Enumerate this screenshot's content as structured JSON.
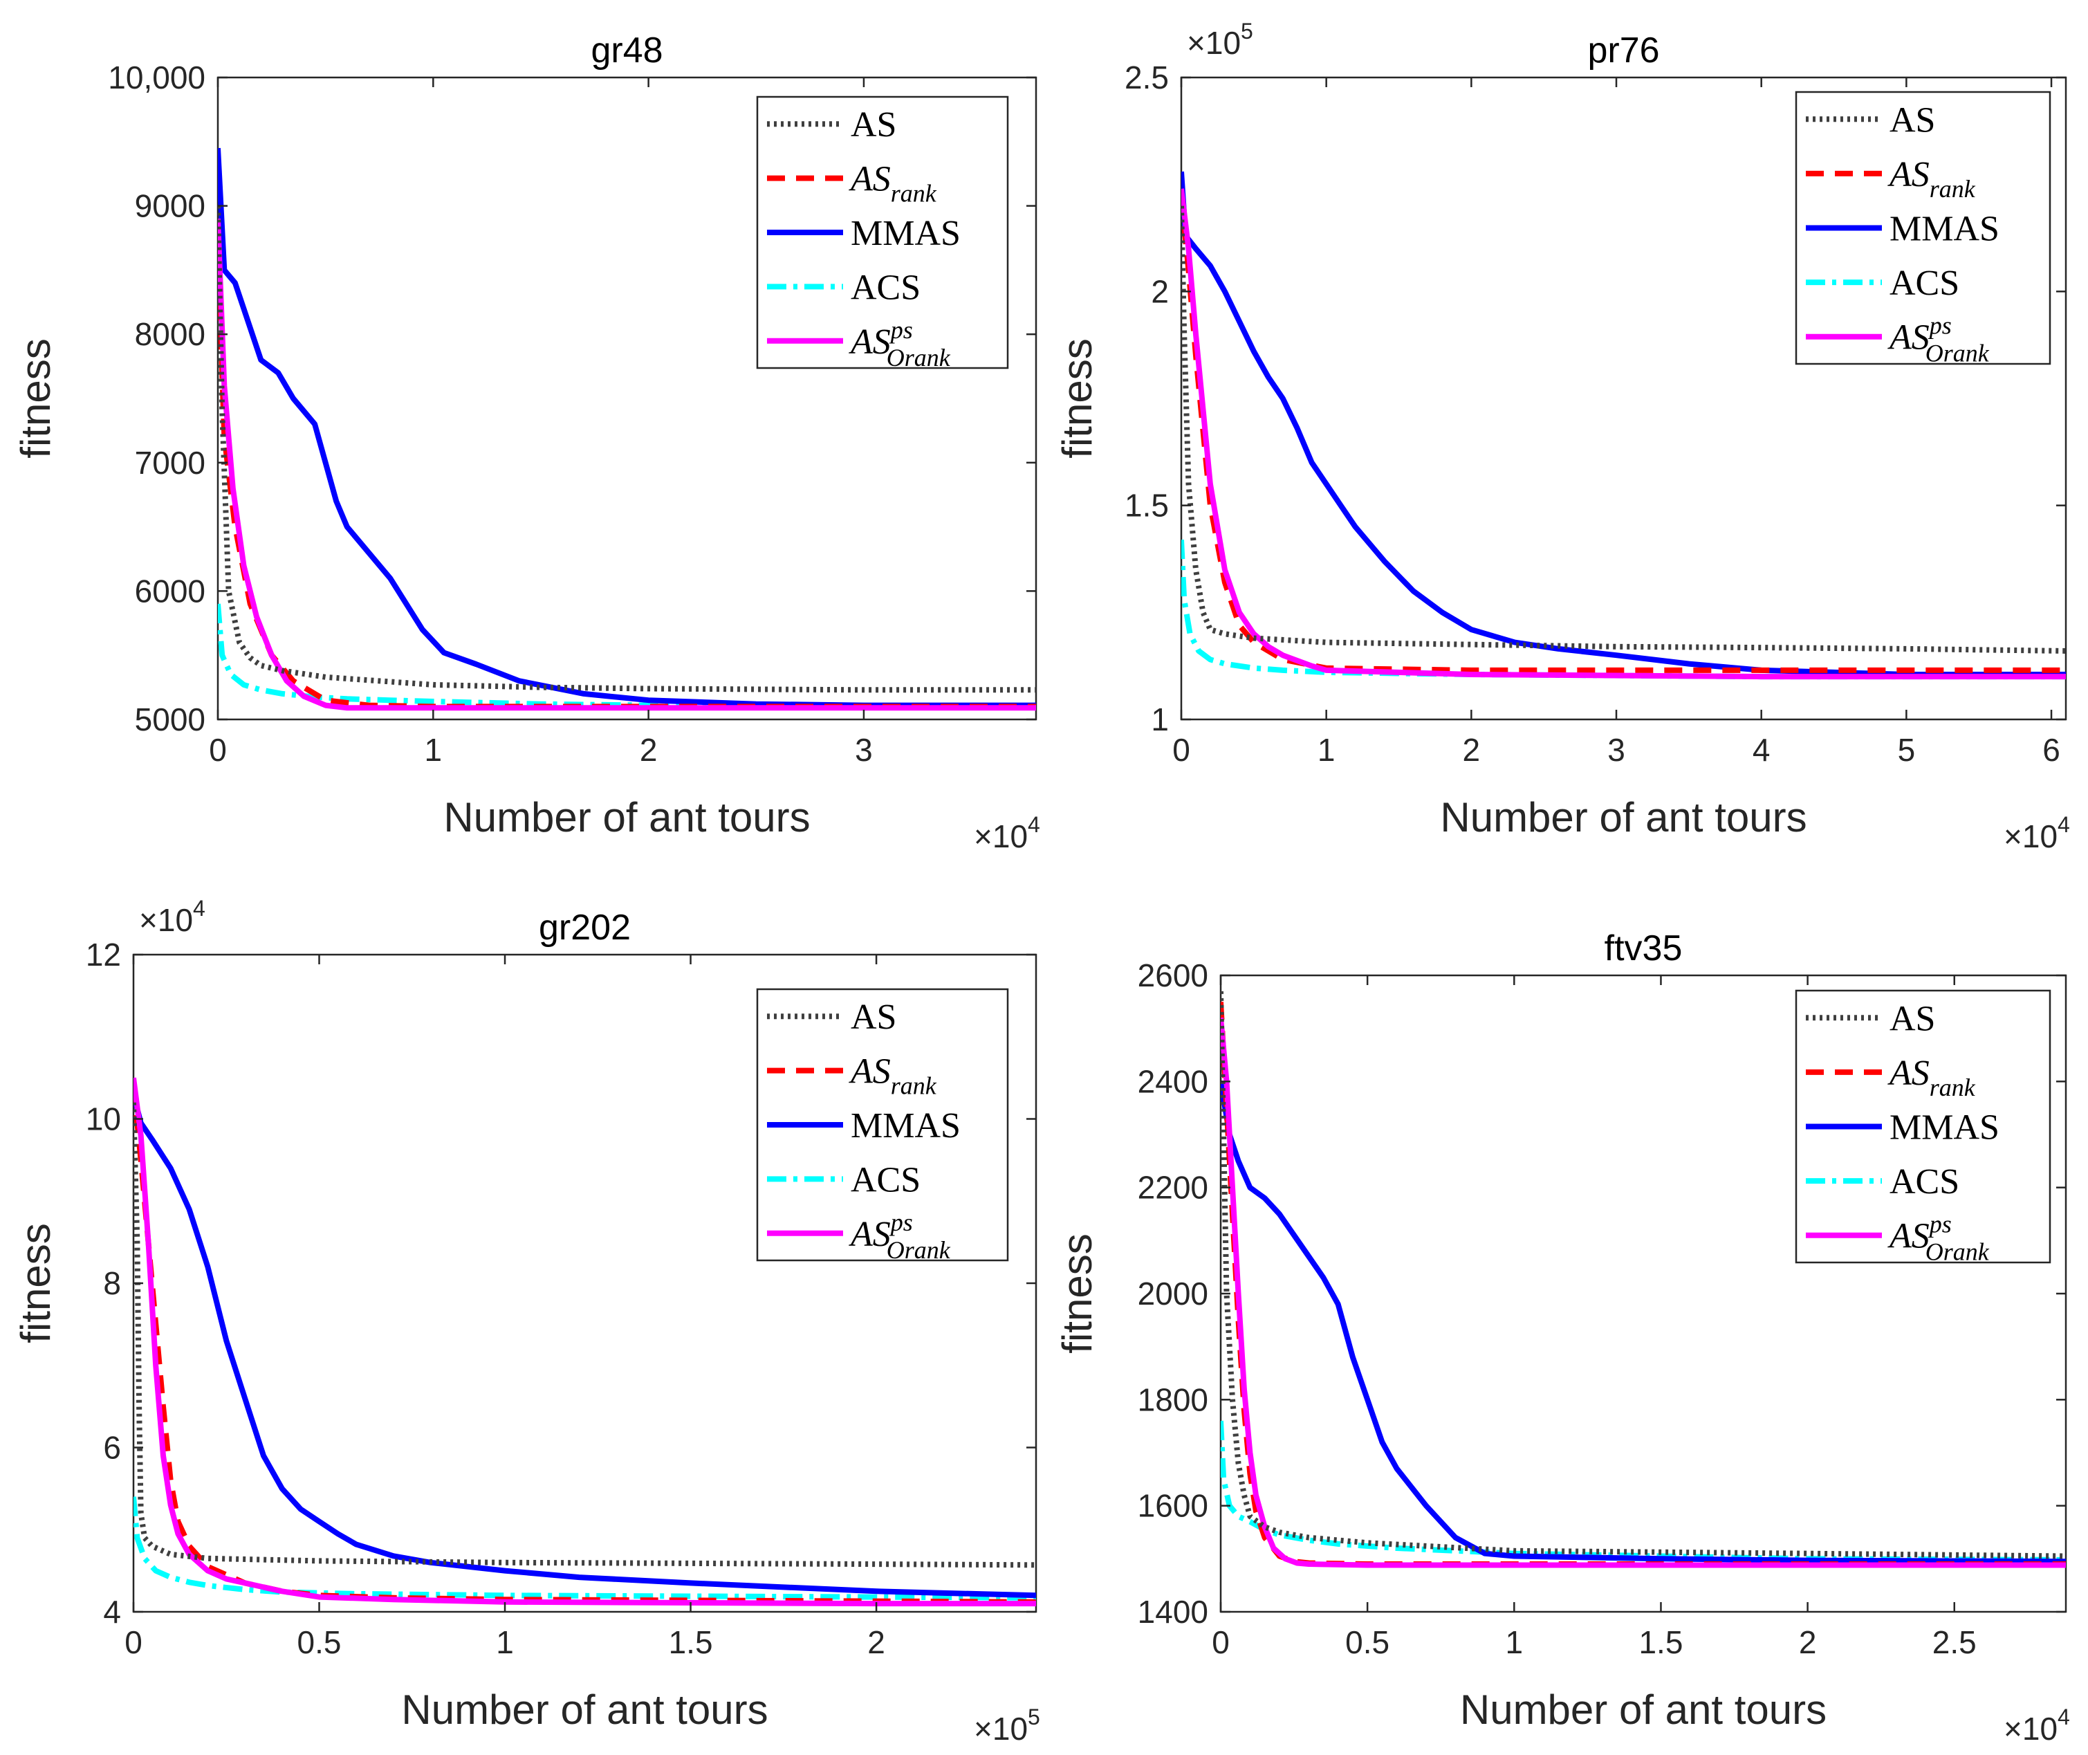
{
  "colors": {
    "AS": "#3f3f3f",
    "AS_rank": "#ff0000",
    "MMAS": "#0000ff",
    "ACS": "#00ffff",
    "AS_Orank_ps": "#ff00ff"
  },
  "chart_data": [
    {
      "type": "line",
      "title": "gr48",
      "xlabel": "Number of ant tours",
      "ylabel": "fitness",
      "x_multiplier": "×10",
      "x_exponent": "4",
      "xlim": [
        0,
        3.8
      ],
      "ylim": [
        5000,
        10000
      ],
      "xticks": [
        0,
        1,
        2,
        3
      ],
      "xtick_labels": [
        "0",
        "1",
        "2",
        "3"
      ],
      "yticks": [
        5000,
        6000,
        7000,
        8000,
        9000,
        10000
      ],
      "ytick_labels": [
        "5000",
        "6000",
        "7000",
        "8000",
        "9000",
        "10,000"
      ],
      "legend_position": "top-right",
      "series": [
        {
          "name": "AS",
          "x": [
            0,
            0.02,
            0.05,
            0.1,
            0.15,
            0.2,
            0.3,
            0.5,
            1,
            1.5,
            2,
            3,
            3.8
          ],
          "y": [
            9000,
            7400,
            6000,
            5600,
            5480,
            5420,
            5380,
            5330,
            5270,
            5250,
            5240,
            5230,
            5230
          ]
        },
        {
          "name": "AS_rank",
          "x": [
            0,
            0.03,
            0.08,
            0.15,
            0.25,
            0.35,
            0.5,
            0.7,
            1,
            2,
            3.8
          ],
          "y": [
            8700,
            7200,
            6500,
            5900,
            5500,
            5300,
            5150,
            5110,
            5100,
            5100,
            5100
          ]
        },
        {
          "name": "MMAS",
          "x": [
            0,
            0.03,
            0.08,
            0.12,
            0.2,
            0.28,
            0.35,
            0.45,
            0.55,
            0.6,
            0.8,
            0.95,
            1.05,
            1.2,
            1.4,
            1.7,
            2,
            2.5,
            3,
            3.8
          ],
          "y": [
            9450,
            8500,
            8400,
            8200,
            7800,
            7700,
            7500,
            7300,
            6700,
            6500,
            6100,
            5700,
            5520,
            5430,
            5300,
            5200,
            5150,
            5120,
            5110,
            5110
          ]
        },
        {
          "name": "ACS",
          "x": [
            0,
            0.02,
            0.06,
            0.12,
            0.2,
            0.3,
            0.45,
            0.6,
            0.8,
            1,
            1.5,
            2,
            3,
            3.8
          ],
          "y": [
            5900,
            5500,
            5350,
            5270,
            5230,
            5200,
            5175,
            5160,
            5150,
            5140,
            5120,
            5110,
            5100,
            5100
          ]
        },
        {
          "name": "AS_Orank_ps",
          "x": [
            0,
            0.03,
            0.07,
            0.12,
            0.18,
            0.25,
            0.32,
            0.4,
            0.5,
            0.6,
            0.8,
            1,
            2,
            3.8
          ],
          "y": [
            8900,
            7600,
            6800,
            6200,
            5800,
            5500,
            5300,
            5180,
            5110,
            5090,
            5090,
            5090,
            5090,
            5090
          ]
        }
      ]
    },
    {
      "type": "line",
      "title": "pr76",
      "xlabel": "Number of ant tours",
      "ylabel": "fitness",
      "x_multiplier": "×10",
      "x_exponent": "4",
      "y_multiplier": "×10",
      "y_exponent": "5",
      "xlim": [
        0,
        6.1
      ],
      "ylim": [
        1,
        2.5
      ],
      "xticks": [
        0,
        1,
        2,
        3,
        4,
        5,
        6
      ],
      "xtick_labels": [
        "0",
        "1",
        "2",
        "3",
        "4",
        "5",
        "6"
      ],
      "yticks": [
        1,
        1.5,
        2,
        2.5
      ],
      "ytick_labels": [
        "1",
        "1.5",
        "2",
        "2.5"
      ],
      "legend_position": "top-right",
      "series": [
        {
          "name": "AS",
          "x": [
            0,
            0.02,
            0.05,
            0.1,
            0.15,
            0.2,
            0.3,
            0.5,
            1,
            2,
            3,
            4,
            5,
            6.1
          ],
          "y": [
            2.2,
            1.9,
            1.55,
            1.35,
            1.25,
            1.21,
            1.2,
            1.19,
            1.18,
            1.175,
            1.17,
            1.168,
            1.165,
            1.16
          ]
        },
        {
          "name": "AS_rank",
          "x": [
            0,
            0.05,
            0.1,
            0.2,
            0.3,
            0.4,
            0.5,
            0.7,
            1,
            2,
            4,
            6.1
          ],
          "y": [
            2.22,
            2.05,
            1.85,
            1.5,
            1.32,
            1.22,
            1.18,
            1.14,
            1.12,
            1.115,
            1.115,
            1.115
          ]
        },
        {
          "name": "MMAS",
          "x": [
            0,
            0.03,
            0.1,
            0.2,
            0.3,
            0.4,
            0.5,
            0.6,
            0.7,
            0.8,
            0.9,
            1,
            1.1,
            1.2,
            1.4,
            1.6,
            1.8,
            2,
            2.3,
            2.6,
            3,
            3.5,
            4,
            4.5,
            5,
            6.1
          ],
          "y": [
            2.28,
            2.13,
            2.1,
            2.06,
            2.0,
            1.93,
            1.86,
            1.8,
            1.75,
            1.68,
            1.6,
            1.55,
            1.5,
            1.45,
            1.37,
            1.3,
            1.25,
            1.21,
            1.18,
            1.165,
            1.15,
            1.13,
            1.115,
            1.11,
            1.105,
            1.105
          ]
        },
        {
          "name": "ACS",
          "x": [
            0,
            0.02,
            0.06,
            0.12,
            0.2,
            0.3,
            0.5,
            0.7,
            1,
            2,
            4,
            6.1
          ],
          "y": [
            1.42,
            1.28,
            1.2,
            1.16,
            1.14,
            1.13,
            1.12,
            1.115,
            1.11,
            1.105,
            1.1,
            1.1
          ]
        },
        {
          "name": "AS_Orank_ps",
          "x": [
            0,
            0.05,
            0.1,
            0.2,
            0.3,
            0.4,
            0.5,
            0.6,
            0.7,
            0.9,
            1,
            2,
            4,
            6.1
          ],
          "y": [
            2.24,
            2.1,
            1.9,
            1.55,
            1.35,
            1.25,
            1.2,
            1.17,
            1.15,
            1.125,
            1.115,
            1.105,
            1.1,
            1.1
          ]
        }
      ]
    },
    {
      "type": "line",
      "title": "gr202",
      "xlabel": "Number of ant tours",
      "ylabel": "fitness",
      "x_multiplier": "×10",
      "x_exponent": "5",
      "y_multiplier": "×10",
      "y_exponent": "4",
      "xlim": [
        0,
        2.43
      ],
      "ylim": [
        4,
        12
      ],
      "xticks": [
        0,
        0.5,
        1,
        1.5,
        2
      ],
      "xtick_labels": [
        "0",
        "0.5",
        "1",
        "1.5",
        "2"
      ],
      "yticks": [
        4,
        6,
        8,
        10,
        12
      ],
      "ytick_labels": [
        "4",
        "6",
        "8",
        "10",
        "12"
      ],
      "legend_position": "top-right",
      "series": [
        {
          "name": "AS",
          "x": [
            0,
            0.01,
            0.015,
            0.02,
            0.03,
            0.05,
            0.1,
            0.2,
            0.5,
            1,
            1.5,
            2,
            2.43
          ],
          "y": [
            10.2,
            8.5,
            6.5,
            5.2,
            4.9,
            4.8,
            4.7,
            4.65,
            4.62,
            4.6,
            4.59,
            4.58,
            4.57
          ]
        },
        {
          "name": "AS_rank",
          "x": [
            0,
            0.02,
            0.05,
            0.08,
            0.1,
            0.12,
            0.15,
            0.2,
            0.3,
            0.4,
            0.5,
            0.7,
            1,
            2,
            2.43
          ],
          "y": [
            10.4,
            9.5,
            8.0,
            6.5,
            5.6,
            5.1,
            4.8,
            4.55,
            4.35,
            4.25,
            4.2,
            4.17,
            4.15,
            4.13,
            4.12
          ]
        },
        {
          "name": "MMAS",
          "x": [
            0,
            0.02,
            0.05,
            0.1,
            0.15,
            0.2,
            0.25,
            0.3,
            0.35,
            0.4,
            0.45,
            0.5,
            0.55,
            0.6,
            0.7,
            0.8,
            1,
            1.2,
            1.5,
            2,
            2.43
          ],
          "y": [
            10.3,
            9.95,
            9.75,
            9.4,
            8.9,
            8.2,
            7.3,
            6.6,
            5.9,
            5.5,
            5.25,
            5.1,
            4.95,
            4.82,
            4.68,
            4.6,
            4.5,
            4.42,
            4.35,
            4.25,
            4.2
          ]
        },
        {
          "name": "ACS",
          "x": [
            0,
            0.01,
            0.03,
            0.06,
            0.1,
            0.15,
            0.2,
            0.3,
            0.4,
            0.6,
            1,
            2,
            2.43
          ],
          "y": [
            5.4,
            4.9,
            4.65,
            4.5,
            4.42,
            4.36,
            4.32,
            4.27,
            4.24,
            4.22,
            4.2,
            4.18,
            4.17
          ]
        },
        {
          "name": "AS_Orank_ps",
          "x": [
            0,
            0.02,
            0.04,
            0.06,
            0.08,
            0.1,
            0.12,
            0.15,
            0.2,
            0.25,
            0.3,
            0.4,
            0.5,
            0.7,
            1,
            2,
            2.43
          ],
          "y": [
            10.5,
            9.8,
            8.5,
            7.0,
            5.9,
            5.3,
            4.95,
            4.7,
            4.5,
            4.4,
            4.35,
            4.25,
            4.18,
            4.15,
            4.12,
            4.1,
            4.1
          ]
        }
      ]
    },
    {
      "type": "line",
      "title": "ftv35",
      "xlabel": "Number of ant tours",
      "ylabel": "fitness",
      "x_multiplier": "×10",
      "x_exponent": "4",
      "xlim": [
        0,
        2.88
      ],
      "ylim": [
        1400,
        2600
      ],
      "xticks": [
        0,
        0.5,
        1,
        1.5,
        2,
        2.5
      ],
      "xtick_labels": [
        "0",
        "0.5",
        "1",
        "1.5",
        "2",
        "2.5"
      ],
      "yticks": [
        1400,
        1600,
        1800,
        2000,
        2200,
        2400,
        2600
      ],
      "ytick_labels": [
        "1400",
        "1600",
        "1800",
        "2000",
        "2200",
        "2400",
        "2600"
      ],
      "legend_position": "top-right",
      "series": [
        {
          "name": "AS",
          "x": [
            0,
            0.01,
            0.02,
            0.04,
            0.06,
            0.08,
            0.1,
            0.15,
            0.2,
            0.3,
            0.5,
            1,
            2,
            2.88
          ],
          "y": [
            2570,
            2300,
            2000,
            1800,
            1680,
            1620,
            1580,
            1560,
            1550,
            1540,
            1530,
            1515,
            1510,
            1505
          ]
        },
        {
          "name": "AS_rank",
          "x": [
            0,
            0.02,
            0.04,
            0.06,
            0.08,
            0.1,
            0.12,
            0.15,
            0.2,
            0.25,
            0.3,
            0.5,
            1,
            2,
            2.88
          ],
          "y": [
            2550,
            2350,
            2150,
            1950,
            1780,
            1660,
            1590,
            1540,
            1505,
            1495,
            1492,
            1490,
            1490,
            1490,
            1490
          ]
        },
        {
          "name": "MMAS",
          "x": [
            0,
            0.03,
            0.06,
            0.1,
            0.15,
            0.2,
            0.25,
            0.3,
            0.35,
            0.4,
            0.45,
            0.5,
            0.55,
            0.6,
            0.7,
            0.8,
            0.9,
            1,
            1.5,
            2,
            2.88
          ],
          "y": [
            2400,
            2300,
            2250,
            2200,
            2180,
            2150,
            2110,
            2070,
            2030,
            1980,
            1880,
            1800,
            1720,
            1670,
            1600,
            1540,
            1510,
            1505,
            1500,
            1497,
            1495
          ]
        },
        {
          "name": "ACS",
          "x": [
            0,
            0.01,
            0.03,
            0.06,
            0.1,
            0.15,
            0.2,
            0.3,
            0.4,
            0.6,
            0.8,
            1,
            1.5,
            2,
            2.88
          ],
          "y": [
            1760,
            1650,
            1600,
            1580,
            1570,
            1555,
            1545,
            1535,
            1528,
            1520,
            1515,
            1510,
            1505,
            1500,
            1498
          ]
        },
        {
          "name": "AS_Orank_ps",
          "x": [
            0,
            0.02,
            0.04,
            0.06,
            0.08,
            0.1,
            0.12,
            0.15,
            0.18,
            0.22,
            0.26,
            0.3,
            0.5,
            1,
            2,
            2.88
          ],
          "y": [
            2520,
            2400,
            2200,
            2000,
            1820,
            1700,
            1620,
            1560,
            1520,
            1500,
            1492,
            1490,
            1488,
            1488,
            1488,
            1488
          ]
        }
      ]
    }
  ],
  "legend": [
    {
      "key": "AS",
      "base": "AS",
      "sub": "",
      "sup": "",
      "italic": false
    },
    {
      "key": "AS_rank",
      "base": "AS",
      "sub": "rank",
      "sup": "",
      "italic": true
    },
    {
      "key": "MMAS",
      "base": "MMAS",
      "sub": "",
      "sup": "",
      "italic": false
    },
    {
      "key": "ACS",
      "base": "ACS",
      "sub": "",
      "sup": "",
      "italic": false
    },
    {
      "key": "AS_Orank_ps",
      "base": "AS",
      "sub": "Orank",
      "sup": "ps",
      "italic": true
    }
  ]
}
